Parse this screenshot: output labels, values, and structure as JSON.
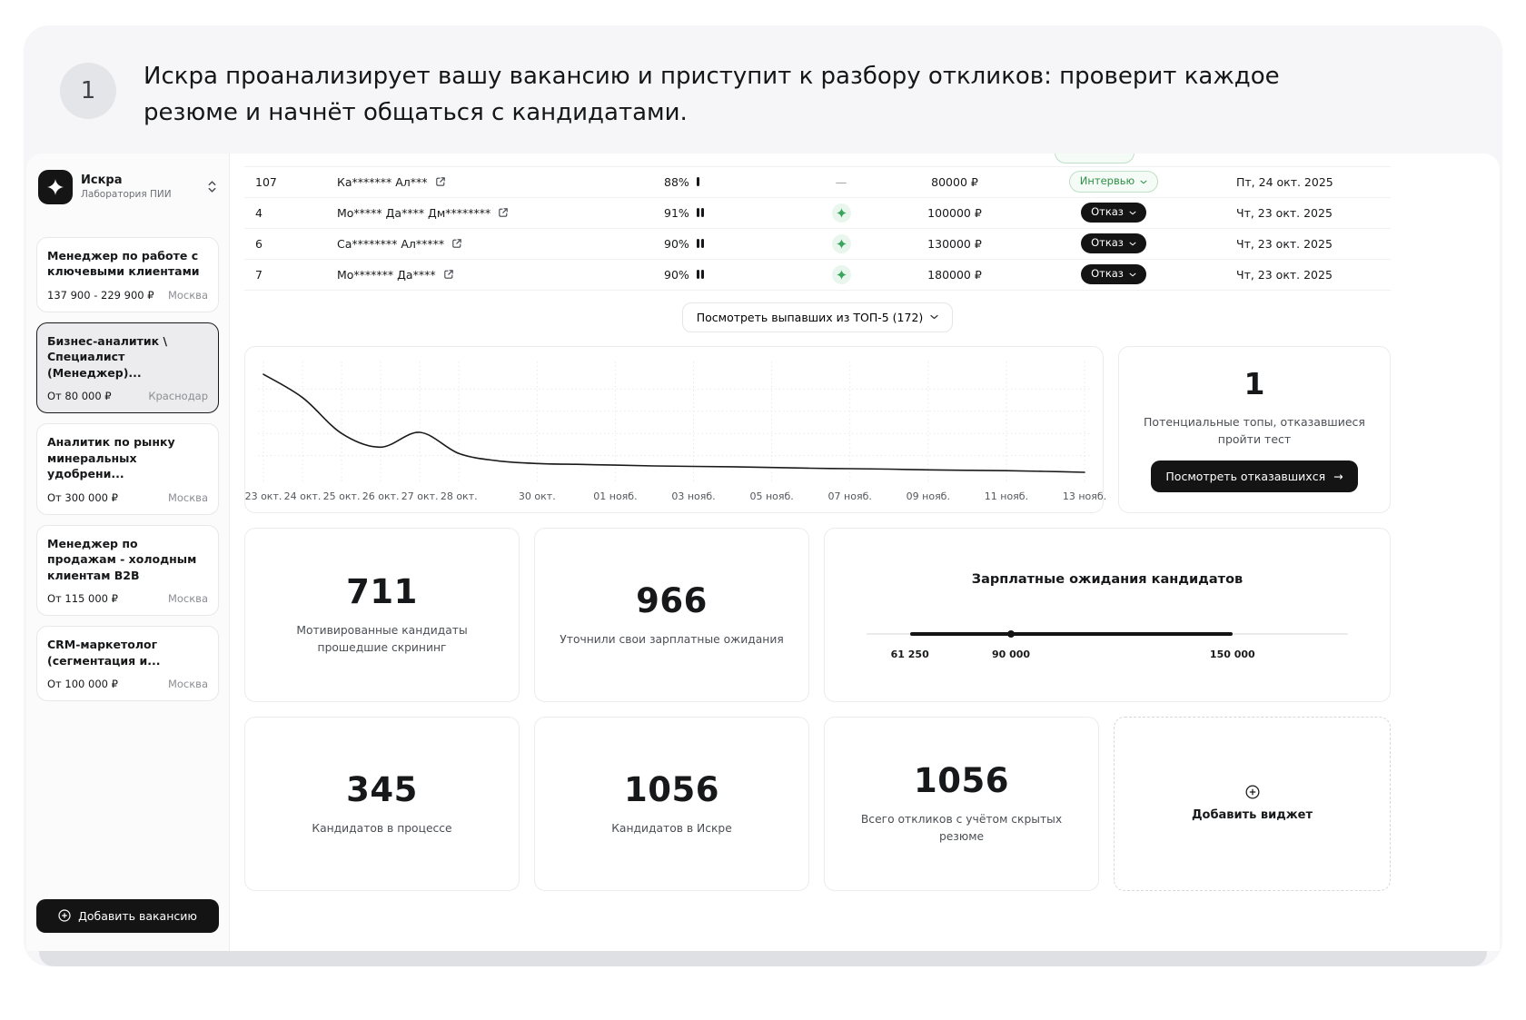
{
  "colors": {
    "accent_black": "#141414",
    "status_green": "#2f9149",
    "status_green_bg": "#f5fbf6",
    "panel_bg": "#f6f6f8"
  },
  "step": {
    "number": "1",
    "text": "Искра проанализирует вашу вакансию и приступит к разбору откликов: проверит каждое резюме и начнёт общаться с кандидатами."
  },
  "sidebar": {
    "workspace": {
      "name": "Искра",
      "subtitle": "Лаборатория ПИИ"
    },
    "vacancies": [
      {
        "title": "Менеджер по работе с ключевыми клиентами",
        "salary": "137 900 - 229 900 ₽",
        "city": "Москва"
      },
      {
        "title": "Бизнес-аналитик \\ Специалист (Менеджер)...",
        "salary": "От 80 000 ₽",
        "city": "Краснодар"
      },
      {
        "title": "Аналитик по рынку минеральных удобрени...",
        "salary": "От 300 000 ₽",
        "city": "Москва"
      },
      {
        "title": "Менеджер по продажам - холодным клиентам B2B",
        "salary": "От 115 000 ₽",
        "city": "Москва"
      },
      {
        "title": "CRM-маркетолог (сегментация и...",
        "salary": "От 100 000 ₽",
        "city": "Москва"
      }
    ],
    "add_vacancy_label": "Добавить вакансию"
  },
  "table": {
    "rows": [
      {
        "rank": "107",
        "name": "Ка******* Ал***",
        "match": "88%",
        "bars": 1,
        "ai": "—",
        "salary": "80000 ₽",
        "status": "Интервью",
        "date": "Пт, 24 окт. 2025"
      },
      {
        "rank": "4",
        "name": "Мо***** Да**** Дм********",
        "match": "91%",
        "bars": 2,
        "ai": "sparkle",
        "salary": "100000 ₽",
        "status": "Отказ",
        "date": "Чт, 23 окт. 2025"
      },
      {
        "rank": "6",
        "name": "Са******** Ал*****",
        "match": "90%",
        "bars": 2,
        "ai": "sparkle",
        "salary": "130000 ₽",
        "status": "Отказ",
        "date": "Чт, 23 окт. 2025"
      },
      {
        "rank": "7",
        "name": "Мо******* Да****",
        "match": "90%",
        "bars": 2,
        "ai": "sparkle",
        "salary": "180000 ₽",
        "status": "Отказ",
        "date": "Чт, 23 окт. 2025"
      }
    ],
    "dropped_button": "Посмотреть выпавших из ТОП-5 (172)"
  },
  "chart_data": {
    "type": "line",
    "title": "",
    "xlabel": "",
    "ylabel": "",
    "ylim": [
      0,
      105
    ],
    "grid": "dotted",
    "legend": "none",
    "values": [
      98,
      76,
      42,
      29,
      43,
      23,
      16,
      13.5,
      12.7,
      12,
      11.2,
      10.8,
      10.4,
      9.7,
      9,
      8.6,
      8.2,
      7.5,
      7.1,
      6.7,
      6,
      5.2
    ],
    "tick_labels": [
      "23 окт.",
      "24 окт.",
      "25 окт.",
      "26 окт.",
      "27 окт.",
      "28 окт.",
      "30 окт.",
      "01 нояб.",
      "03 нояб.",
      "05 нояб.",
      "07 нояб.",
      "09 нояб.",
      "11 нояб.",
      "13 нояб."
    ],
    "tick_positions": [
      0,
      1,
      2,
      3,
      4,
      5,
      7,
      9,
      11,
      13,
      15,
      17,
      19,
      21
    ]
  },
  "refusals": {
    "value": "1",
    "label": "Потенциальные топы, отказавшиеся пройти тест",
    "button": "Посмотреть отказавшихся",
    "arrow": "→"
  },
  "stats": [
    {
      "value": "711",
      "label": "Мотивированные кандидаты прошедшие скрининг"
    },
    {
      "value": "966",
      "label": "Уточнили свои зарплатные ожидания"
    },
    {
      "value": "345",
      "label": "Кандидатов в процессе"
    },
    {
      "value": "1056",
      "label": "Кандидатов в Искре"
    },
    {
      "value": "1056",
      "label": "Всего откликов с учётом скрытых резюме"
    }
  ],
  "salary_widget": {
    "title": "Зарплатные ожидания кандидатов",
    "min": "61 250",
    "current": "90 000",
    "max": "150 000"
  },
  "add_widget_label": "Добавить виджет"
}
